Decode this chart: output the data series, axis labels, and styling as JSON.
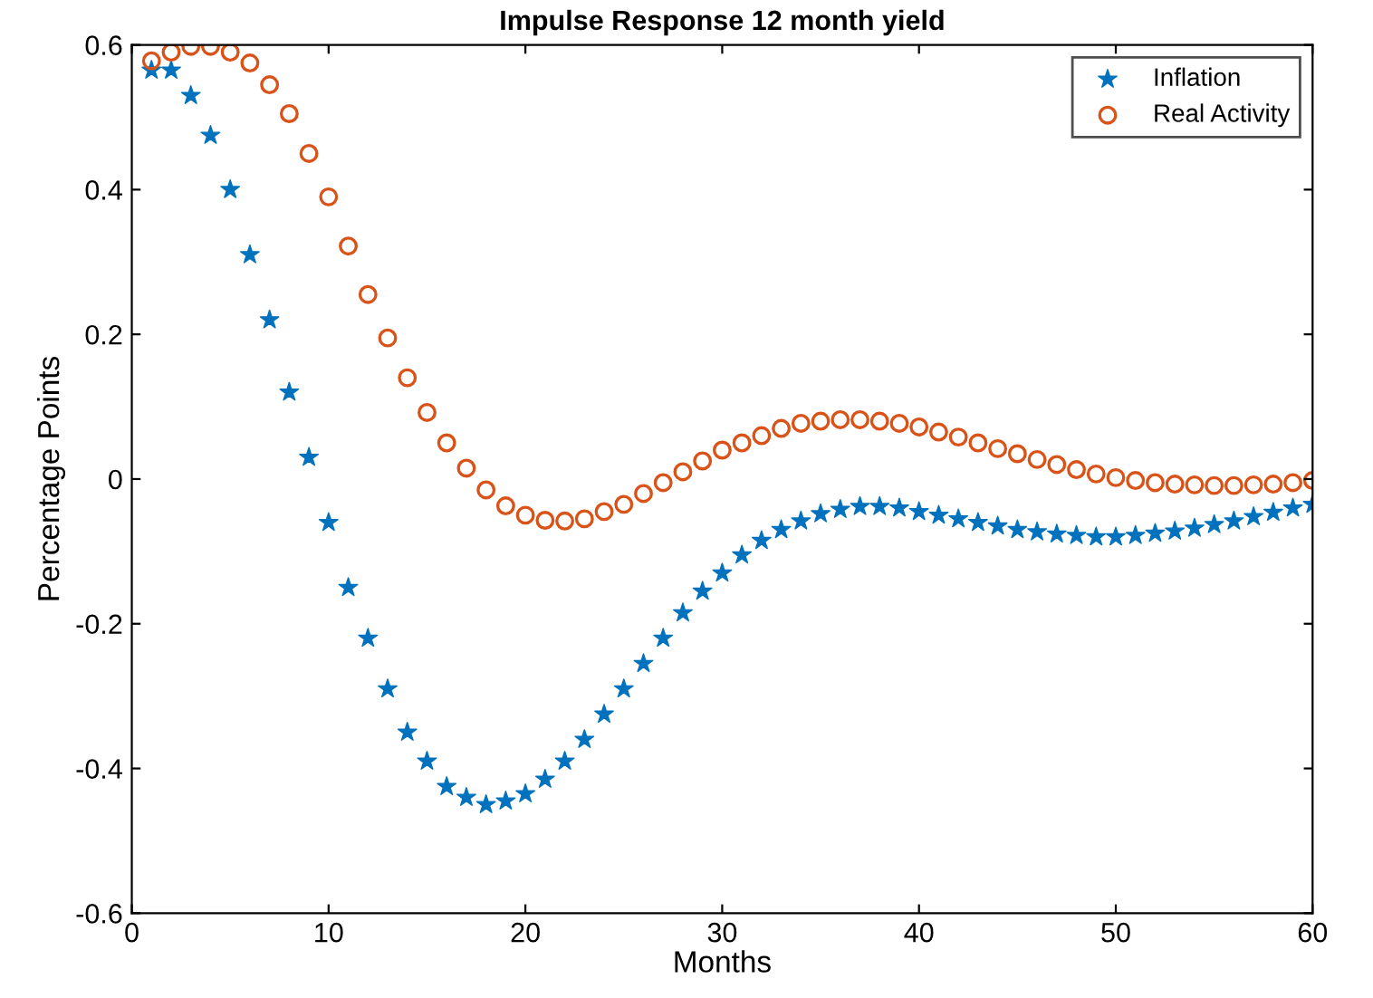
{
  "chart_data": {
    "type": "scatter",
    "title": "Impulse Response 12 month yield",
    "xlabel": "Months",
    "ylabel": "Percentage Points",
    "x": [
      1,
      2,
      3,
      4,
      5,
      6,
      7,
      8,
      9,
      10,
      11,
      12,
      13,
      14,
      15,
      16,
      17,
      18,
      19,
      20,
      21,
      22,
      23,
      24,
      25,
      26,
      27,
      28,
      29,
      30,
      31,
      32,
      33,
      34,
      35,
      36,
      37,
      38,
      39,
      40,
      41,
      42,
      43,
      44,
      45,
      46,
      47,
      48,
      49,
      50,
      51,
      52,
      53,
      54,
      55,
      56,
      57,
      58,
      59,
      60
    ],
    "series": [
      {
        "name": "Inflation",
        "color": "#0072bd",
        "marker": "star",
        "values": [
          0.565,
          0.565,
          0.53,
          0.475,
          0.4,
          0.31,
          0.22,
          0.12,
          0.03,
          -0.06,
          -0.15,
          -0.22,
          -0.29,
          -0.35,
          -0.39,
          -0.425,
          -0.44,
          -0.45,
          -0.445,
          -0.435,
          -0.415,
          -0.39,
          -0.36,
          -0.325,
          -0.29,
          -0.255,
          -0.22,
          -0.185,
          -0.155,
          -0.13,
          -0.105,
          -0.085,
          -0.07,
          -0.058,
          -0.048,
          -0.042,
          -0.038,
          -0.038,
          -0.04,
          -0.045,
          -0.05,
          -0.055,
          -0.06,
          -0.065,
          -0.07,
          -0.073,
          -0.076,
          -0.078,
          -0.08,
          -0.08,
          -0.078,
          -0.075,
          -0.072,
          -0.068,
          -0.063,
          -0.058,
          -0.052,
          -0.046,
          -0.04,
          -0.035
        ]
      },
      {
        "name": "Real Activity",
        "color": "#d95319",
        "marker": "circle",
        "values": [
          0.578,
          0.59,
          0.598,
          0.598,
          0.59,
          0.575,
          0.545,
          0.505,
          0.45,
          0.39,
          0.322,
          0.255,
          0.195,
          0.14,
          0.092,
          0.05,
          0.015,
          -0.015,
          -0.037,
          -0.05,
          -0.057,
          -0.058,
          -0.055,
          -0.045,
          -0.035,
          -0.02,
          -0.005,
          0.01,
          0.025,
          0.04,
          0.05,
          0.06,
          0.07,
          0.077,
          0.08,
          0.082,
          0.082,
          0.08,
          0.077,
          0.072,
          0.065,
          0.058,
          0.05,
          0.042,
          0.035,
          0.027,
          0.02,
          0.013,
          0.007,
          0.002,
          -0.002,
          -0.005,
          -0.007,
          -0.008,
          -0.009,
          -0.009,
          -0.008,
          -0.007,
          -0.005,
          -0.002
        ]
      }
    ],
    "xlim": [
      0,
      60
    ],
    "xticks": [
      0,
      10,
      20,
      30,
      40,
      50,
      60
    ],
    "ylim": [
      -0.6,
      0.6
    ],
    "yticks": [
      -0.6,
      -0.4,
      -0.2,
      0,
      0.2,
      0.4,
      0.6
    ],
    "grid": false,
    "legend": "top right"
  }
}
